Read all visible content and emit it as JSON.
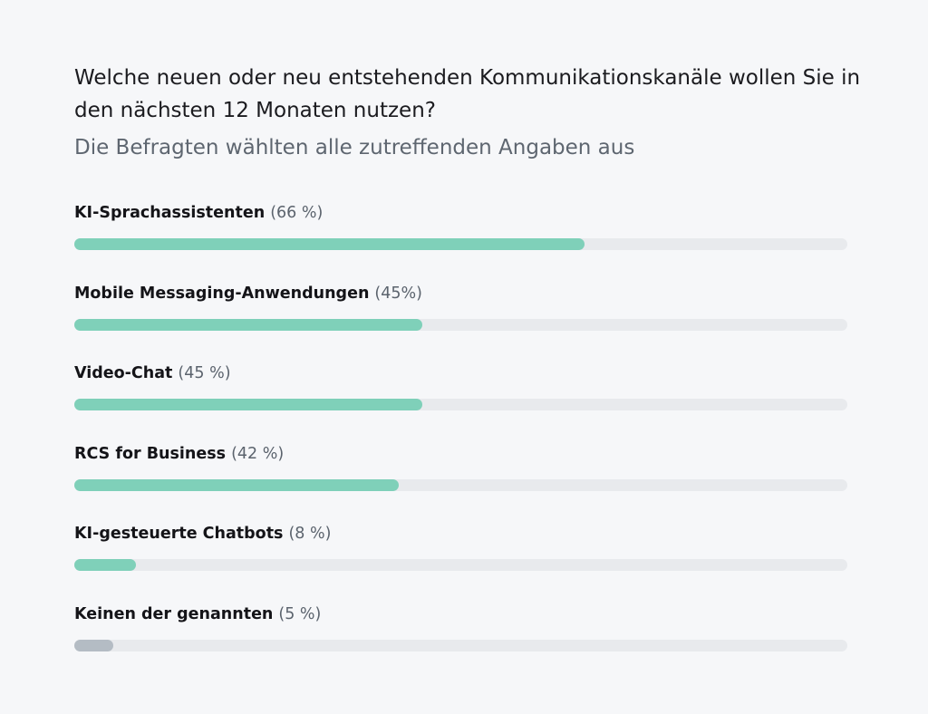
{
  "header": {
    "title": "Welche neuen oder neu entstehenden Kommunikationskanäle wollen Sie in den nächsten 12 Monaten nutzen?",
    "subtitle": "Die Befragten wählten alle zutreffenden Angaben aus"
  },
  "colors": {
    "bar_fill": "#7fd0b9",
    "bar_fill_none": "#b4bcc4",
    "track": "#e8eaed",
    "background": "#f6f7f9"
  },
  "chart_data": {
    "type": "bar",
    "orientation": "horizontal",
    "title": "Welche neuen oder neu entstehenden Kommunikationskanäle wollen Sie in den nächsten 12 Monaten nutzen?",
    "subtitle": "Die Befragten wählten alle zutreffenden Angaben aus",
    "xlim": [
      0,
      100
    ],
    "grid": false,
    "categories": [
      "KI-Sprachassistenten",
      "Mobile Messaging-Anwendungen",
      "Video-Chat",
      "RCS for Business",
      "KI-gesteuerte Chatbots",
      "Keinen der genannten"
    ],
    "values": [
      66,
      45,
      45,
      42,
      8,
      5
    ],
    "value_labels": [
      "(66 %)",
      "(45%)",
      "(45 %)",
      "(42 %)",
      "(8 %)",
      "(5 %)"
    ]
  }
}
